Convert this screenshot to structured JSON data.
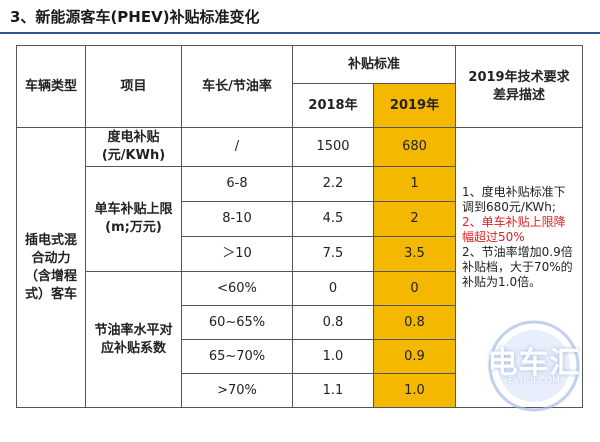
{
  "title": "3、新能源客车(PHEV)补贴标准变化",
  "header": {
    "vehicle_type": "车辆类型",
    "item": "项目",
    "length_rate": "车长/节油率",
    "subsidy_standard": "补贴标准",
    "year_2018": "2018年",
    "year_2019": "2019年",
    "req_diff": "2019年技术要求差异描述"
  },
  "vehicle_type_value": "插电式混合动力（含增程式）客车",
  "rows": [
    {
      "item": "度电补贴(元/KWh)",
      "range": "/",
      "v2018": "1500",
      "v2019": "680"
    },
    {
      "range": "6-8",
      "v2018": "2.2",
      "v2019": "1"
    },
    {
      "range": "8-10",
      "v2018": "4.5",
      "v2019": "2"
    },
    {
      "range": "＞10",
      "v2018": "7.5",
      "v2019": "3.5"
    },
    {
      "range": "<60%",
      "v2018": "0",
      "v2019": "0"
    },
    {
      "range": "60~65%",
      "v2018": "0.8",
      "v2019": "0.8"
    },
    {
      "range": "65~70%",
      "v2018": "1.0",
      "v2019": "0.9"
    },
    {
      "range": ">70%",
      "v2018": "1.1",
      "v2019": "1.0"
    }
  ],
  "group_items": {
    "cap": "单车补贴上限(m;万元)",
    "coef": "节油率水平对应补贴系数"
  },
  "description": {
    "part1": "1、度电补贴标准下调到680元/KWh;",
    "part2_red": "2、单车补贴上限降幅超过50%",
    "part3": "2、节油率增加0.9倍补贴档，大于70%的补贴为1.0倍。"
  },
  "watermark": {
    "text": "电车汇",
    "url": "EVHUI.COM"
  },
  "colors": {
    "highlight": "#f5b800",
    "rule": "#2f5597",
    "red_text": "#e02020"
  }
}
